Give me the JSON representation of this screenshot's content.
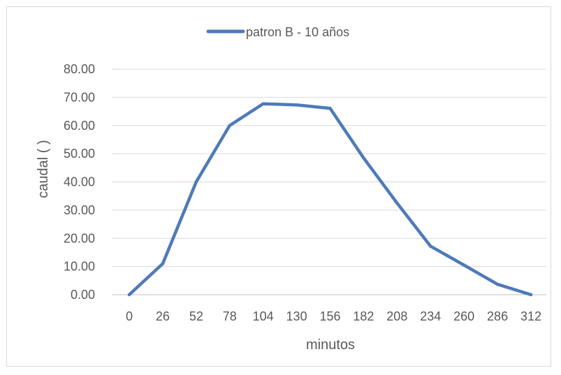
{
  "chart_data": {
    "type": "line",
    "xlabel": "minutos",
    "ylabel": "caudal (       )",
    "ylim": [
      0,
      80
    ],
    "y_ticks": [
      "0.00",
      "10.00",
      "20.00",
      "30.00",
      "40.00",
      "50.00",
      "60.00",
      "70.00",
      "80.00"
    ],
    "categories": [
      "0",
      "26",
      "52",
      "78",
      "104",
      "130",
      "156",
      "182",
      "208",
      "234",
      "260",
      "286",
      "312"
    ],
    "series": [
      {
        "name": "patron B - 10 años",
        "color": "#4e7ab9",
        "values": [
          0,
          11,
          40,
          60,
          67.7,
          67.3,
          66.1,
          48.5,
          32.5,
          17.2,
          10.5,
          3.7,
          0
        ]
      }
    ],
    "grid": true,
    "legend_position": "top"
  }
}
